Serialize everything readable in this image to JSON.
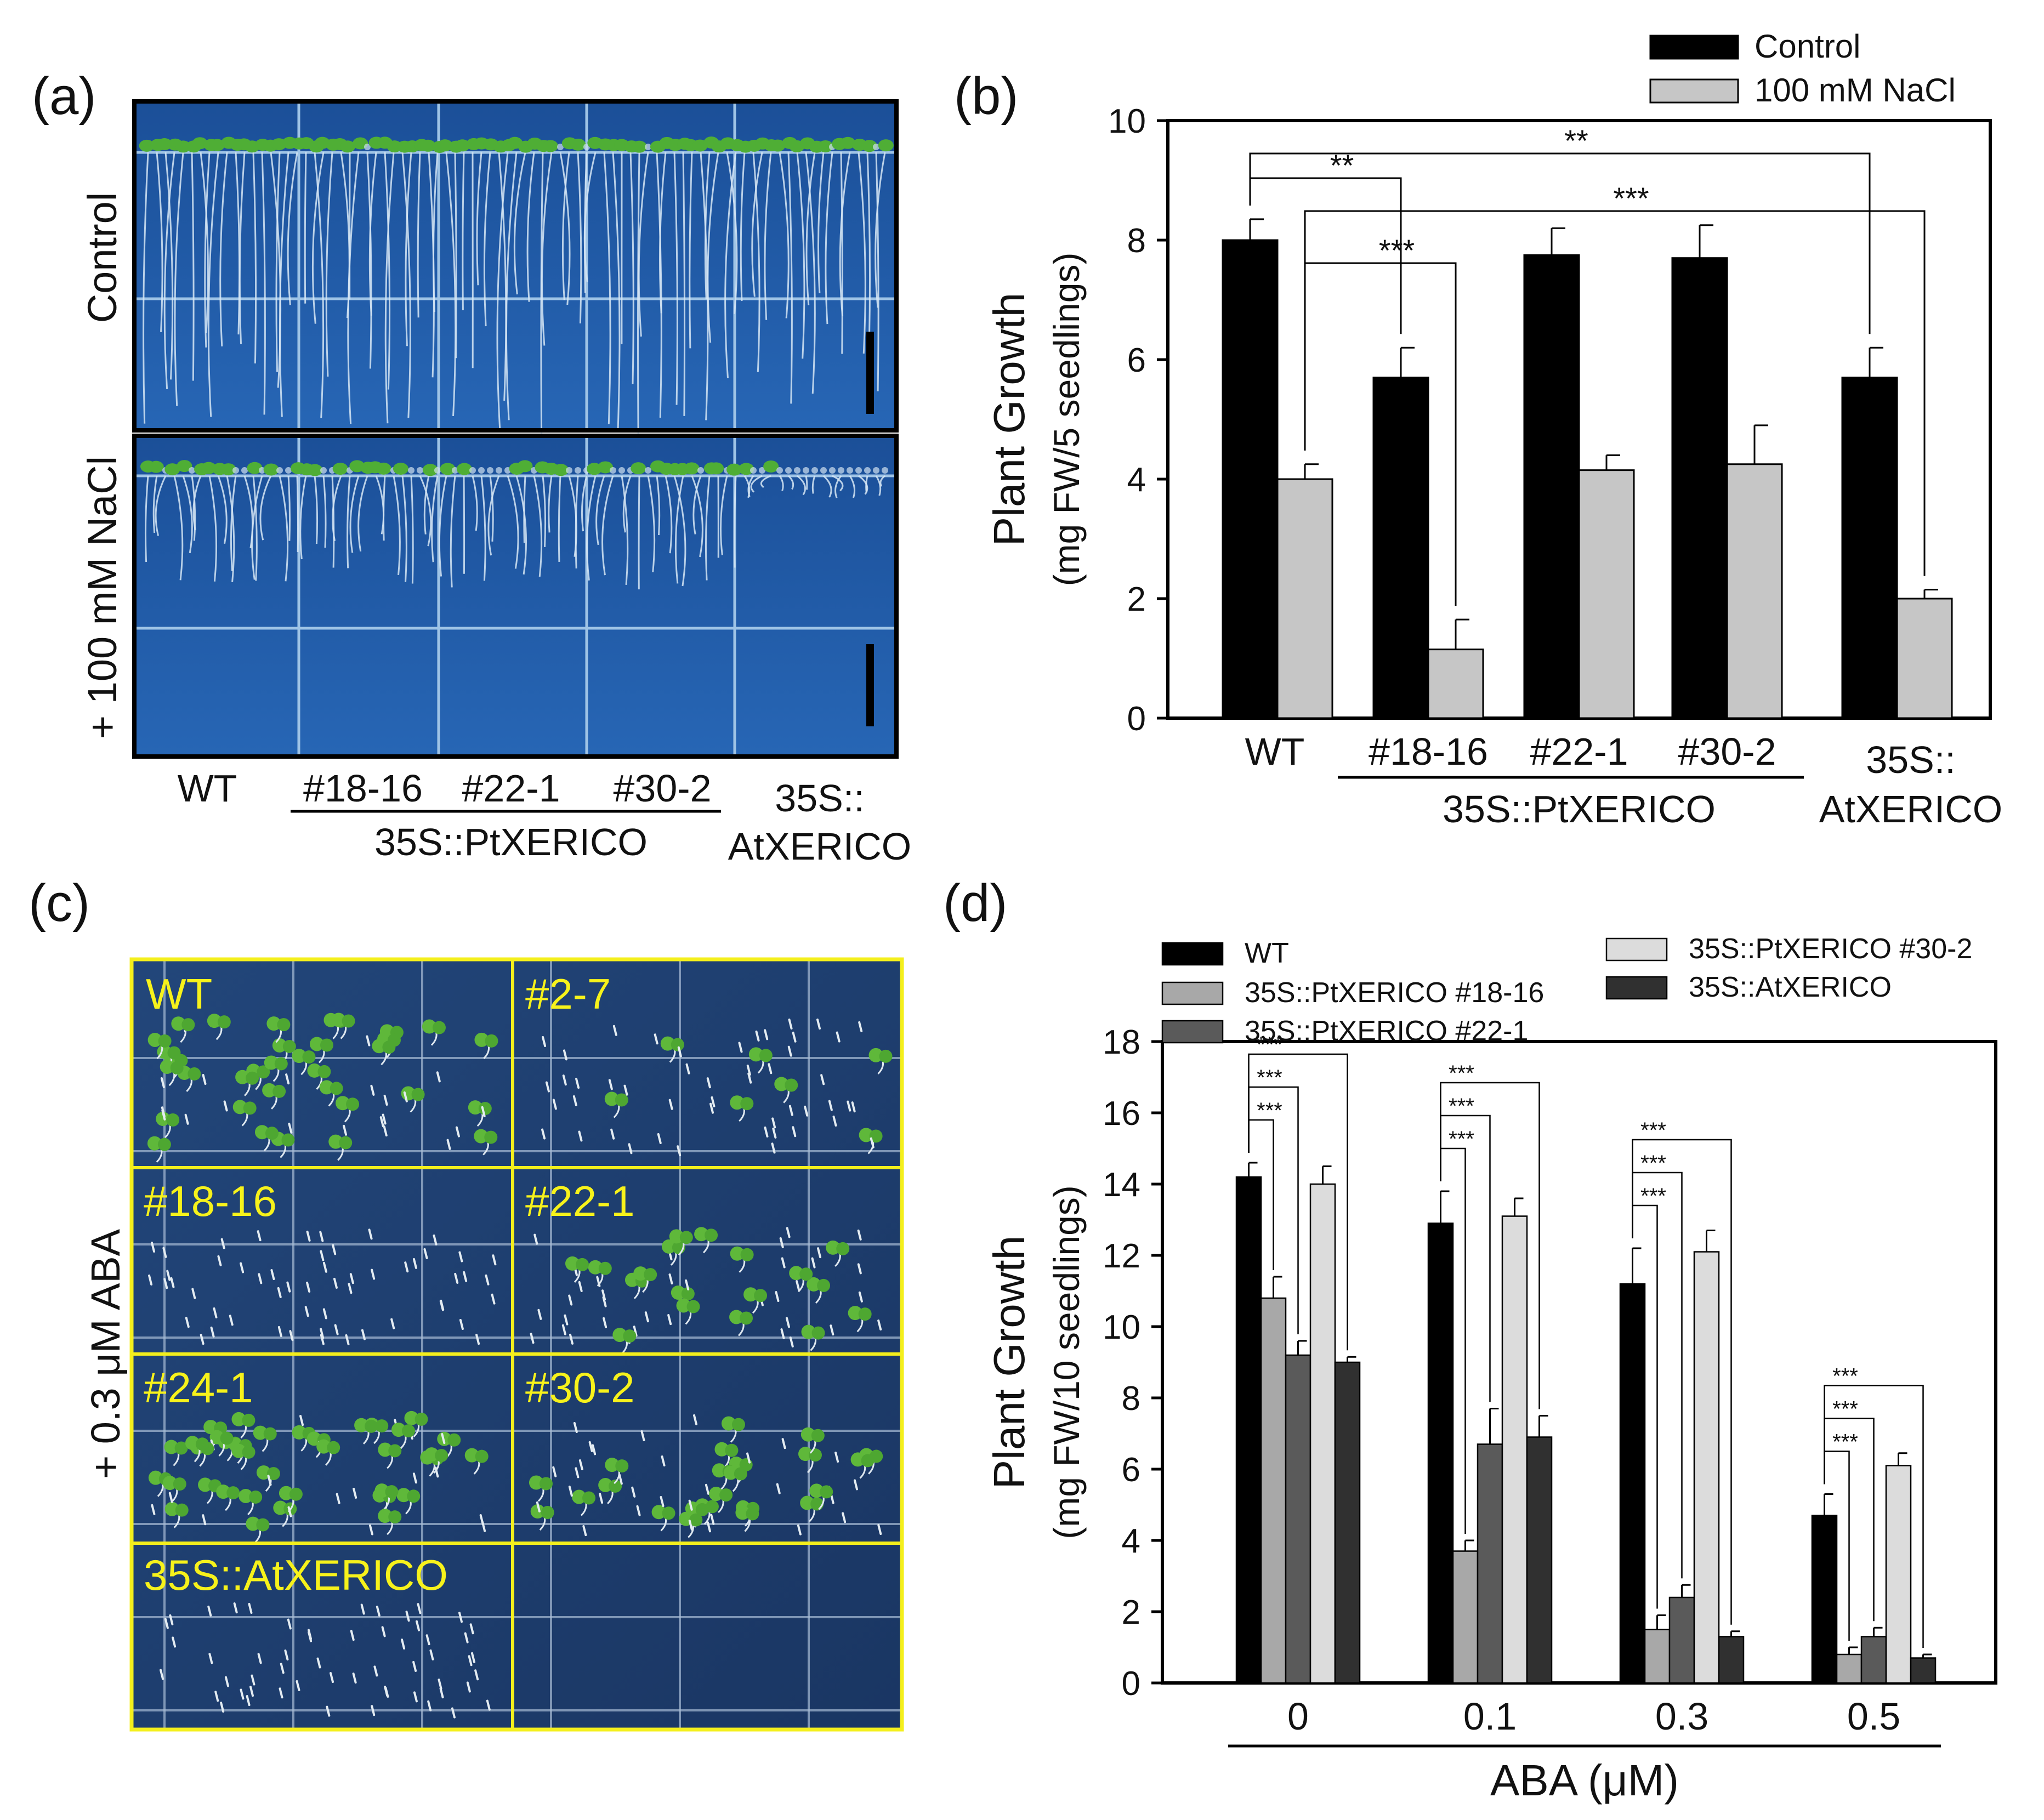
{
  "panels": {
    "a": {
      "label": "(a)",
      "row_labels": [
        "Control",
        "+ 100 mM NaCl"
      ],
      "categories": [
        "WT",
        "#18-16",
        "#22-1",
        "#30-2",
        "35S::",
        "AtXERICO"
      ],
      "group_label": "35S::PtXERICO",
      "colors": {
        "plate": "#1f5aa8",
        "seedling": "#4fae35",
        "root": "#d6e6f5",
        "grid": "#9fc4e6"
      }
    },
    "c": {
      "label": "(c)",
      "side_label": "+ 0.3 μM ABA",
      "cells": [
        "WT",
        "#2-7",
        "#18-16",
        "#22-1",
        "#24-1",
        "#30-2",
        "35S::AtXERICO",
        ""
      ],
      "colors": {
        "plate": "#1d3d6b",
        "frame": "#f4ef1c"
      }
    }
  },
  "chart_data": [
    {
      "type": "bar",
      "panel_label": "(b)",
      "categories": [
        "WT",
        "#18-16",
        "#22-1",
        "#30-2",
        "35S::AtXERICO"
      ],
      "category_labels": [
        "WT",
        "#18-16",
        "#22-1",
        "#30-2",
        "35S::",
        "AtXERICO"
      ],
      "group_label": "35S::PtXERICO",
      "series": [
        {
          "name": "Control",
          "color": "#000000",
          "values": [
            8.0,
            5.7,
            7.75,
            7.7,
            5.7
          ],
          "errors": [
            0.35,
            0.5,
            0.45,
            0.55,
            0.5
          ]
        },
        {
          "name": "100 mM NaCl",
          "color": "#c6c6c6",
          "values": [
            4.0,
            1.15,
            4.15,
            4.25,
            2.0
          ],
          "errors": [
            0.25,
            0.5,
            0.25,
            0.65,
            0.15
          ]
        }
      ],
      "ylabel": "Plant Growth",
      "ylabel_sub": "(mg FW/5 seedlings)",
      "ylim": [
        0,
        10
      ],
      "yticks": [
        0,
        2,
        4,
        6,
        8,
        10
      ],
      "legend_position": "top-right",
      "significance": [
        {
          "text": "**",
          "from": [
            0,
            0
          ],
          "to": [
            1,
            0
          ]
        },
        {
          "text": "**",
          "from": [
            0,
            0
          ],
          "to": [
            4,
            0
          ]
        },
        {
          "text": "***",
          "from": [
            0,
            1
          ],
          "to": [
            1,
            1
          ]
        },
        {
          "text": "***",
          "from": [
            0,
            1
          ],
          "to": [
            4,
            1
          ]
        }
      ]
    },
    {
      "type": "bar",
      "panel_label": "(d)",
      "categories": [
        "0",
        "0.1",
        "0.3",
        "0.5"
      ],
      "series": [
        {
          "name": "WT",
          "color": "#000000",
          "values": [
            14.2,
            12.9,
            11.2,
            4.7
          ],
          "errors": [
            0.4,
            0.9,
            1.0,
            0.6
          ]
        },
        {
          "name": "35S::PtXERICO #18-16",
          "color": "#a8a8a8",
          "values": [
            10.8,
            3.7,
            1.5,
            0.8
          ],
          "errors": [
            0.6,
            0.3,
            0.4,
            0.2
          ]
        },
        {
          "name": "35S::PtXERICO #22-1",
          "color": "#5a5a5a",
          "values": [
            9.2,
            6.7,
            2.4,
            1.3
          ],
          "errors": [
            0.4,
            1.0,
            0.35,
            0.25
          ]
        },
        {
          "name": "35S::PtXERICO #30-2",
          "color": "#dcdcdc",
          "values": [
            14.0,
            13.1,
            12.1,
            6.1
          ],
          "errors": [
            0.5,
            0.5,
            0.6,
            0.35
          ]
        },
        {
          "name": "35S::AtXERICO",
          "color": "#303030",
          "values": [
            9.0,
            6.9,
            1.3,
            0.7
          ],
          "errors": [
            0.15,
            0.6,
            0.15,
            0.1
          ]
        }
      ],
      "xlabel": "ABA (μM)",
      "ylabel": "Plant Growth",
      "ylabel_sub": "(mg FW/10 seedlings)",
      "ylim": [
        0,
        18
      ],
      "yticks": [
        0,
        2,
        4,
        6,
        8,
        10,
        12,
        14,
        16,
        18
      ],
      "legend_position": "top",
      "significance_text": "***",
      "significance_pairs": [
        [
          0,
          1
        ],
        [
          0,
          2
        ],
        [
          0,
          4
        ]
      ]
    }
  ]
}
